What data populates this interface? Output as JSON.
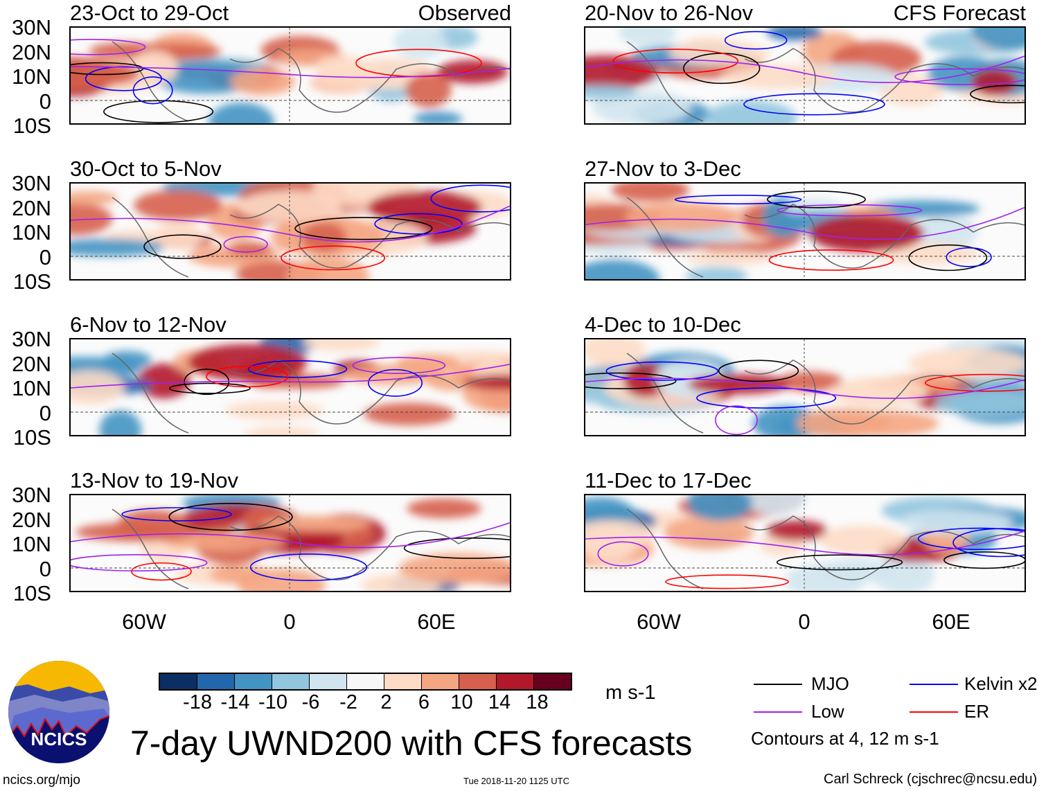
{
  "panels": [
    {
      "title": "23-Oct to 29-Oct",
      "label": "Observed",
      "column": "left"
    },
    {
      "title": "30-Oct to 5-Nov",
      "column": "left"
    },
    {
      "title": "6-Nov to 12-Nov",
      "column": "left"
    },
    {
      "title": "13-Nov to 19-Nov",
      "column": "left"
    },
    {
      "title": "20-Nov to 26-Nov",
      "label": "CFS Forecast",
      "column": "right"
    },
    {
      "title": "27-Nov to 3-Dec",
      "column": "right"
    },
    {
      "title": "4-Dec to 10-Dec",
      "column": "right"
    },
    {
      "title": "11-Dec to 17-Dec",
      "column": "right"
    }
  ],
  "lat_labels": [
    "30N",
    "20N",
    "10N",
    "0",
    "10S"
  ],
  "lon_labels": [
    "60W",
    "0",
    "60E"
  ],
  "colorbar": {
    "colors": [
      "#0b2f63",
      "#2366ac",
      "#4393c3",
      "#92c5de",
      "#d1e5f0",
      "#f7f7f7",
      "#fddbc7",
      "#f4a582",
      "#d6604d",
      "#b2182b",
      "#67001f"
    ],
    "labels": [
      "-18",
      "-14",
      "-10",
      "-6",
      "-2",
      "2",
      "6",
      "10",
      "14",
      "18"
    ],
    "units": "m s-1"
  },
  "legend": {
    "items": [
      {
        "label": "MJO",
        "color": "#000000"
      },
      {
        "label": "Kelvin x2",
        "color": "#0000ff"
      },
      {
        "label": "Low",
        "color": "#a020f0"
      },
      {
        "label": "ER",
        "color": "#ff0000"
      }
    ],
    "note": "Contours at 4, 12 m s-1"
  },
  "title": "7-day UWND200 with CFS forecasts",
  "logo_text": "NCICS",
  "footer": {
    "url": "ncics.org/mjo",
    "timestamp": "Tue 2018-11-20 1125 UTC",
    "author": "Carl Schreck (cjschrec@ncsu.edu)"
  }
}
